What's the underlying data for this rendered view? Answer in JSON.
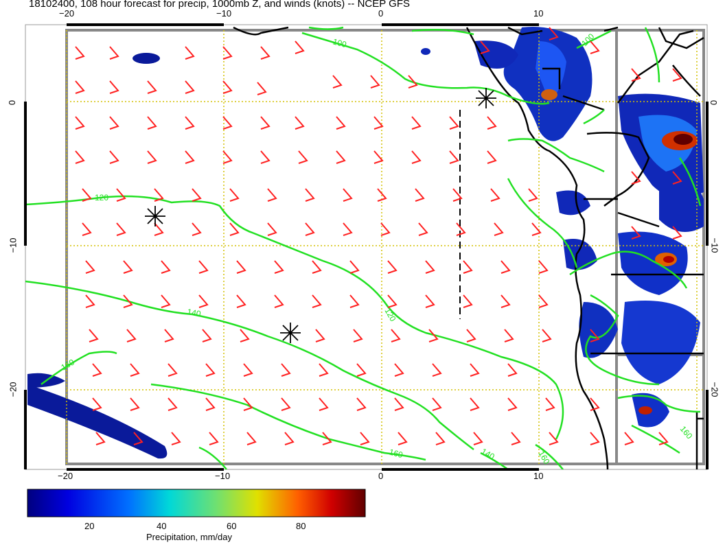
{
  "title": "18102400, 108 hour forecast for precip, 1000mb Z, and winds (knots) -- NCEP GFS",
  "stamp": "18102400",
  "map": {
    "lon_ticks": [
      "−20",
      "−10",
      "0",
      "10"
    ],
    "lat_ticks": [
      "0",
      "−10",
      "−20"
    ],
    "contour_labels": [
      "100",
      "100",
      "120",
      "120",
      "140",
      "140",
      "160",
      "160",
      "160",
      "160"
    ],
    "colors": {
      "contour": "#22e022",
      "wind_barb": "#ff2020",
      "grid": "#d4c000",
      "frame": "#888888",
      "coast": "#000000"
    }
  },
  "colorbar": {
    "ticks": [
      "20",
      "40",
      "60",
      "80"
    ],
    "label": "Precipitation, mm/day"
  }
}
